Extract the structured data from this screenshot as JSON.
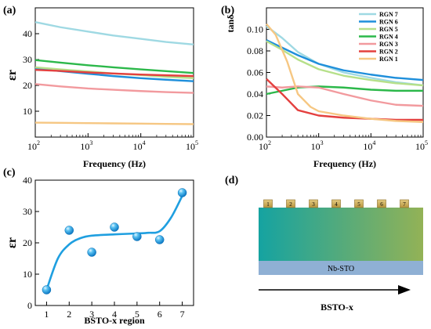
{
  "panels": {
    "a": {
      "letter": "(a)"
    },
    "b": {
      "letter": "(b)"
    },
    "c": {
      "letter": "(c)"
    },
    "d": {
      "letter": "(d)"
    }
  },
  "diagram_d": {
    "electrode_labels": [
      "1",
      "2",
      "3",
      "4",
      "5",
      "6",
      "7"
    ],
    "substrate_label": "Nb-STO",
    "arrow_label": "BSTO-x",
    "colors": {
      "film_left": "#15a3a1",
      "film_right": "#93b256",
      "substrate": "#8fb0d4",
      "electrode": "#d2b66a"
    }
  },
  "chart_data": [
    {
      "id": "a",
      "type": "line",
      "xscale": "log",
      "xlim": [
        100,
        100000
      ],
      "ylim": [
        0,
        50
      ],
      "xticks": [
        "10^2",
        "10^3",
        "10^4",
        "10^5"
      ],
      "yticks": [
        10,
        20,
        30,
        40
      ],
      "xlabel": "Frequency (Hz)",
      "ylabel": "εr",
      "series": [
        {
          "name": "RGN 7",
          "color": "#9fd9e3",
          "x": [
            100,
            300,
            1000,
            3000,
            10000,
            30000,
            100000
          ],
          "y": [
            44.5,
            42.5,
            40.8,
            39.3,
            38.0,
            36.8,
            35.8
          ]
        },
        {
          "name": "RGN 6",
          "color": "#1f8fdb",
          "x": [
            100,
            300,
            1000,
            3000,
            10000,
            30000,
            100000
          ],
          "y": [
            26.5,
            25.5,
            24.5,
            23.6,
            22.8,
            22.2,
            21.6
          ]
        },
        {
          "name": "RGN 5",
          "color": "#b6e08a",
          "x": [
            100,
            300,
            1000,
            3000,
            10000,
            30000,
            100000
          ],
          "y": [
            27.0,
            26.2,
            25.4,
            24.6,
            24.0,
            23.3,
            22.8
          ]
        },
        {
          "name": "RGN 4",
          "color": "#2cb84a",
          "x": [
            100,
            300,
            1000,
            3000,
            10000,
            30000,
            100000
          ],
          "y": [
            29.8,
            28.8,
            27.8,
            27.0,
            26.2,
            25.5,
            24.8
          ]
        },
        {
          "name": "RGN 3",
          "color": "#f29a9e",
          "x": [
            100,
            300,
            1000,
            3000,
            10000,
            30000,
            100000
          ],
          "y": [
            20.5,
            19.6,
            18.8,
            18.3,
            17.8,
            17.4,
            17.1
          ]
        },
        {
          "name": "RGN 2",
          "color": "#e4403f",
          "x": [
            100,
            300,
            1000,
            3000,
            10000,
            30000,
            100000
          ],
          "y": [
            26.0,
            25.6,
            25.0,
            24.6,
            24.2,
            23.9,
            23.6
          ]
        },
        {
          "name": "RGN 1",
          "color": "#f6c783",
          "x": [
            100,
            300,
            1000,
            3000,
            10000,
            30000,
            100000
          ],
          "y": [
            5.6,
            5.5,
            5.4,
            5.3,
            5.2,
            5.1,
            5.0
          ]
        }
      ]
    },
    {
      "id": "b",
      "type": "line",
      "xscale": "log",
      "xlim": [
        100,
        100000
      ],
      "ylim": [
        0,
        0.12
      ],
      "xticks": [
        "10^2",
        "10^3",
        "10^4",
        "10^5"
      ],
      "yticks": [
        "0.00",
        "0.02",
        "0.04",
        "0.06",
        "0.08",
        "0.10"
      ],
      "xlabel": "Frequency (Hz)",
      "ylabel": "tanδ",
      "legend_position": "top-right",
      "series": [
        {
          "name": "RGN 7",
          "color": "#9fd9e3",
          "x": [
            100,
            200,
            400,
            1000,
            3000,
            10000,
            30000,
            100000
          ],
          "y": [
            0.103,
            0.092,
            0.079,
            0.068,
            0.06,
            0.055,
            0.051,
            0.048
          ]
        },
        {
          "name": "RGN 6",
          "color": "#1f8fdb",
          "x": [
            100,
            200,
            400,
            1000,
            3000,
            10000,
            30000,
            100000
          ],
          "y": [
            0.09,
            0.083,
            0.076,
            0.068,
            0.062,
            0.058,
            0.055,
            0.053
          ]
        },
        {
          "name": "RGN 5",
          "color": "#b6e08a",
          "x": [
            100,
            200,
            400,
            1000,
            3000,
            10000,
            30000,
            100000
          ],
          "y": [
            0.089,
            0.081,
            0.072,
            0.063,
            0.057,
            0.053,
            0.05,
            0.048
          ]
        },
        {
          "name": "RGN 4",
          "color": "#2cb84a",
          "x": [
            100,
            200,
            400,
            1000,
            3000,
            10000,
            30000,
            100000
          ],
          "y": [
            0.04,
            0.043,
            0.046,
            0.047,
            0.046,
            0.044,
            0.043,
            0.043
          ]
        },
        {
          "name": "RGN 3",
          "color": "#f29a9e",
          "x": [
            100,
            200,
            400,
            1000,
            3000,
            10000,
            30000,
            100000
          ],
          "y": [
            0.047,
            0.046,
            0.047,
            0.046,
            0.04,
            0.034,
            0.03,
            0.029
          ]
        },
        {
          "name": "RGN 2",
          "color": "#e4403f",
          "x": [
            100,
            200,
            400,
            1000,
            3000,
            10000,
            30000,
            100000
          ],
          "y": [
            0.054,
            0.04,
            0.025,
            0.02,
            0.018,
            0.017,
            0.016,
            0.016
          ]
        },
        {
          "name": "RGN 1",
          "color": "#f6c783",
          "x": [
            100,
            150,
            250,
            400,
            700,
            1000,
            3000,
            10000,
            30000,
            100000
          ],
          "y": [
            0.105,
            0.095,
            0.07,
            0.04,
            0.028,
            0.024,
            0.02,
            0.017,
            0.015,
            0.014
          ]
        }
      ]
    },
    {
      "id": "c",
      "type": "scatter",
      "xlim": [
        0.5,
        7.5
      ],
      "ylim": [
        0,
        40
      ],
      "xticks": [
        1,
        2,
        3,
        4,
        5,
        6,
        7
      ],
      "yticks": [
        0,
        10,
        20,
        30,
        40
      ],
      "xlabel": "BSTO-x region",
      "ylabel": "εr",
      "points": {
        "x": [
          1,
          2,
          3,
          4,
          5,
          6,
          7
        ],
        "y": [
          5,
          24,
          17,
          25,
          22,
          21,
          36
        ]
      },
      "fit_curve": {
        "x": [
          1,
          1.5,
          2,
          2.5,
          3,
          4,
          5,
          5.5,
          6,
          6.5,
          7
        ],
        "y": [
          5,
          15,
          19.5,
          21.5,
          22.3,
          22.7,
          23.0,
          23.2,
          23.7,
          28,
          35
        ]
      },
      "color": "#1f9fe0"
    }
  ]
}
